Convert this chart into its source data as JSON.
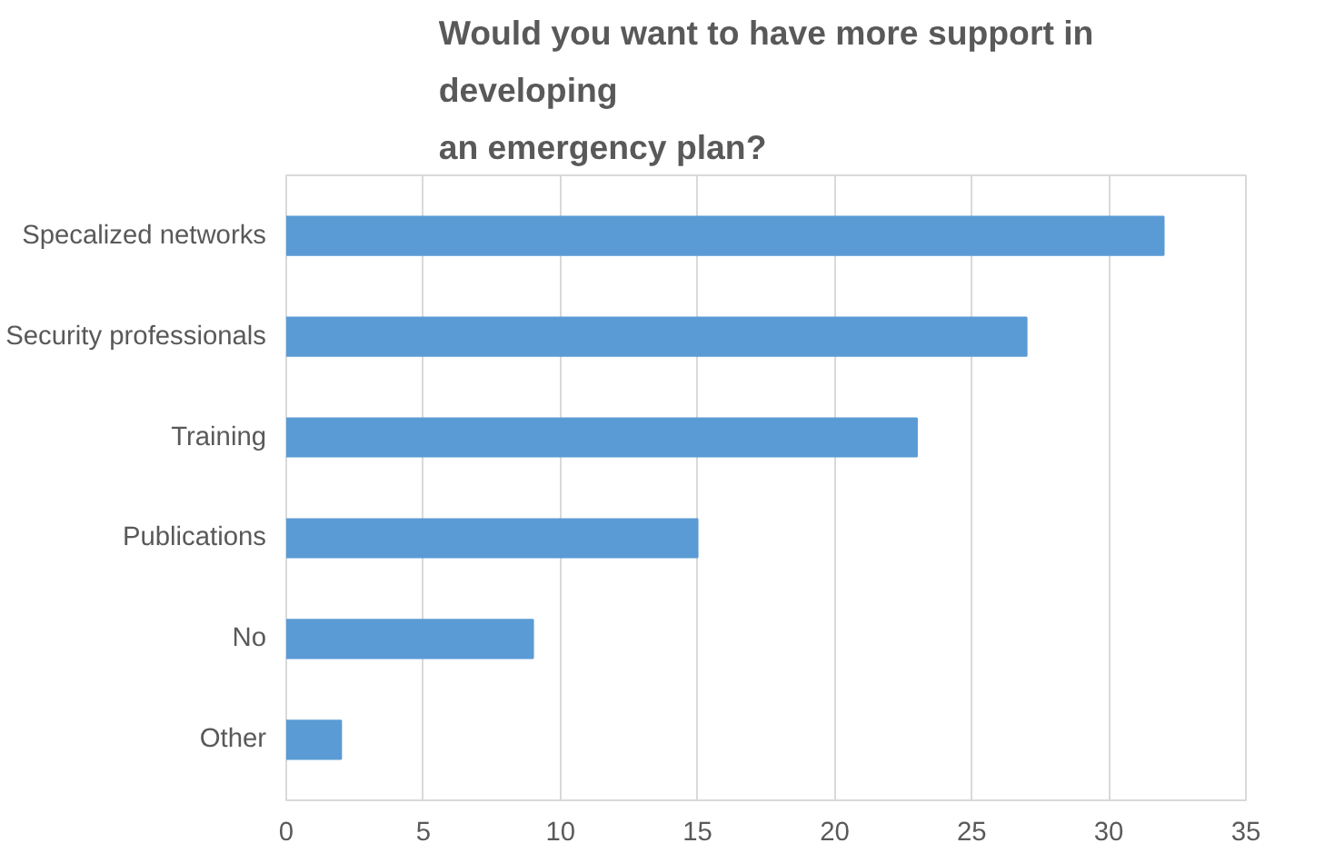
{
  "chart_data": {
    "type": "bar",
    "orientation": "horizontal",
    "title": "Would you want to have more support in\ndeveloping\nan emergency plan?",
    "categories": [
      "Specalized networks",
      "Security professionals",
      "Training",
      "Publications",
      "No",
      "Other"
    ],
    "values": [
      32,
      27,
      23,
      15,
      9,
      2
    ],
    "color": "#5b9bd5",
    "xlim": [
      0,
      35
    ],
    "xticks": [
      0,
      5,
      10,
      15,
      20,
      25,
      30,
      35
    ],
    "grid": "x"
  }
}
